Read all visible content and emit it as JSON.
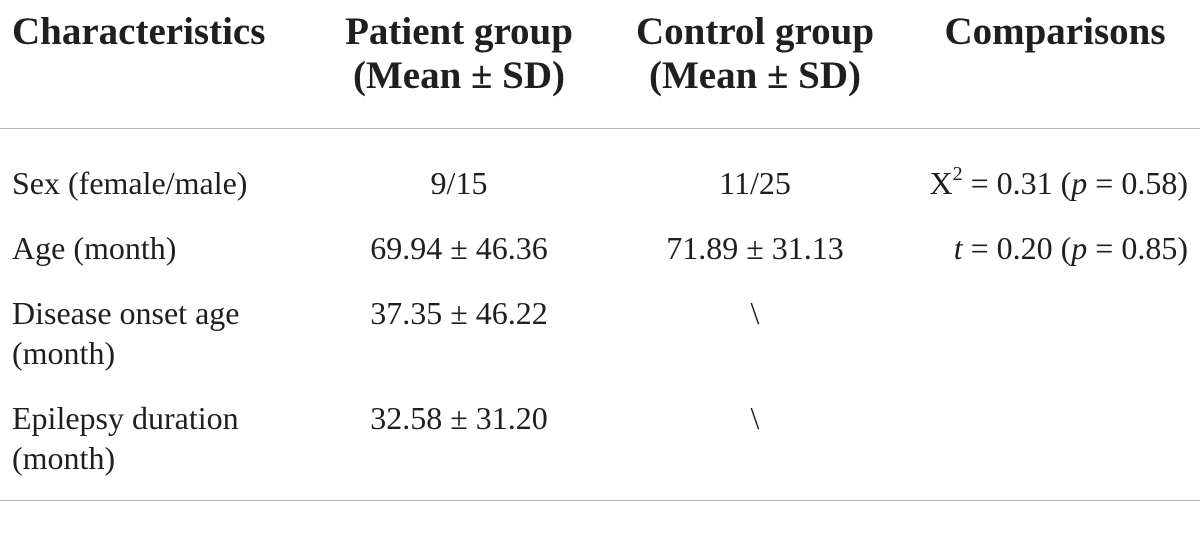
{
  "table": {
    "headers": {
      "characteristics": "Characteristics",
      "patient_line1": "Patient group",
      "patient_line2": "(Mean ± SD)",
      "control_line1": "Control group",
      "control_line2": "(Mean ± SD)",
      "comparisons": "Comparisons"
    },
    "rows": [
      {
        "characteristic_line1": "Sex (female/male)",
        "characteristic_line2": "",
        "patient": "9/15",
        "control": "11/25",
        "comparison": {
          "stat_symbol": "X",
          "stat_superscript": "2",
          "stat_value": " = 0.31 (",
          "p_symbol": "p",
          "p_value": " = 0.58)"
        }
      },
      {
        "characteristic_line1": "Age (month)",
        "characteristic_line2": "",
        "patient": "69.94 ± 46.36",
        "control": "71.89 ± 31.13",
        "comparison": {
          "stat_symbol": "t",
          "stat_value": " = 0.20 (",
          "p_symbol": "p",
          "p_value": " = 0.85)"
        }
      },
      {
        "characteristic_line1": "Disease onset age",
        "characteristic_line2": "(month)",
        "patient": "37.35 ± 46.22",
        "control": "\\",
        "comparison": null
      },
      {
        "characteristic_line1": "Epilepsy duration",
        "characteristic_line2": "(month)",
        "patient": "32.58 ± 31.20",
        "control": "\\",
        "comparison": null
      }
    ]
  }
}
